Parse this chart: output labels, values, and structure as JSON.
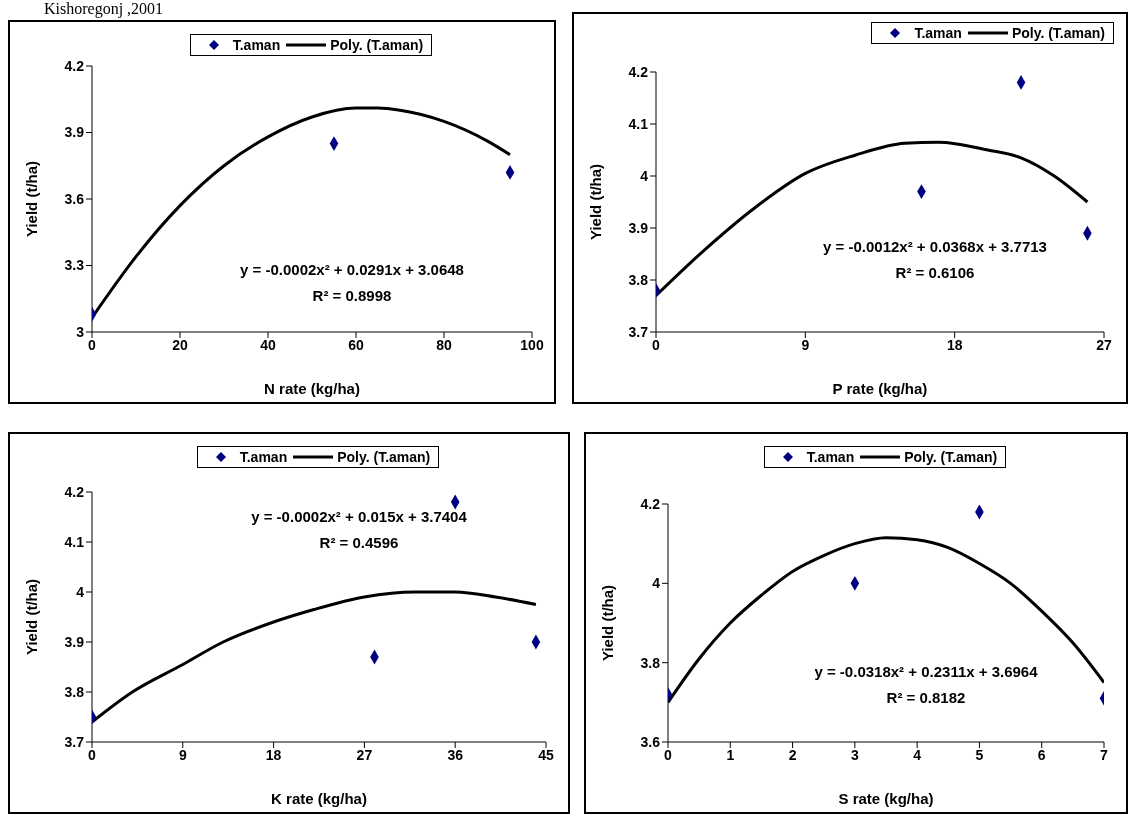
{
  "chart_data": [
    {
      "type": "scatter",
      "title": "Kishoregonj ,2001",
      "xlabel": "N rate (kg/ha)",
      "ylabel": "Yield (t/ha)",
      "xlim": [
        0,
        100
      ],
      "xticks": [
        0,
        20,
        40,
        60,
        80,
        100
      ],
      "ylim": [
        3,
        4.2
      ],
      "yticks": [
        3,
        3.3,
        3.6,
        3.9,
        4.2
      ],
      "legend": "top",
      "annotations": [
        "y = -0.0002x² + 0.0291x + 3.0648",
        "R² = 0.8998"
      ],
      "series": [
        {
          "name": "T.aman",
          "marker": "diamond",
          "color": "#000080",
          "x": [
            0,
            55,
            95
          ],
          "values": [
            3.08,
            3.85,
            3.72
          ]
        },
        {
          "name": "Poly. (T.aman)",
          "type": "line",
          "marker": "none",
          "line_style": "solid",
          "color": "#000000",
          "x": [
            0,
            10,
            20,
            30,
            40,
            50,
            60,
            65,
            70,
            80,
            90,
            95
          ],
          "values": [
            3.065,
            3.34,
            3.57,
            3.75,
            3.88,
            3.97,
            4.01,
            4.01,
            4.0,
            3.95,
            3.86,
            3.8
          ]
        }
      ]
    },
    {
      "type": "scatter",
      "xlabel": "P rate (kg/ha)",
      "ylabel": "Yield (t/ha)",
      "xlim": [
        0,
        27
      ],
      "xticks": [
        0,
        9,
        18,
        27
      ],
      "ylim": [
        3.7,
        4.2
      ],
      "yticks": [
        3.7,
        3.8,
        3.9,
        4,
        4.1,
        4.2
      ],
      "legend": "top right",
      "annotations": [
        "y = -0.0012x² + 0.0368x + 3.7713",
        "R² = 0.6106"
      ],
      "series": [
        {
          "name": "T.aman",
          "marker": "diamond",
          "color": "#000080",
          "x": [
            0,
            16,
            22,
            26
          ],
          "values": [
            3.78,
            3.97,
            4.18,
            3.89
          ]
        },
        {
          "name": "Poly. (T.aman)",
          "type": "line",
          "marker": "none",
          "line_style": "solid",
          "color": "#000000",
          "x": [
            0,
            3,
            6,
            9,
            12,
            15,
            17,
            20,
            22,
            24,
            26
          ],
          "values": [
            3.77,
            3.86,
            3.94,
            4.005,
            4.04,
            4.063,
            4.065,
            4.05,
            4.035,
            4.0,
            3.95
          ]
        }
      ]
    },
    {
      "type": "scatter",
      "xlabel": "K rate (kg/ha)",
      "ylabel": "Yield (t/ha)",
      "xlim": [
        0,
        45
      ],
      "xticks": [
        0,
        9,
        18,
        27,
        36,
        45
      ],
      "ylim": [
        3.7,
        4.2
      ],
      "yticks": [
        3.7,
        3.8,
        3.9,
        4,
        4.1,
        4.2
      ],
      "legend": "top",
      "annotations": [
        "y = -0.0002x² + 0.015x + 3.7404",
        "R² = 0.4596"
      ],
      "series": [
        {
          "name": "T.aman",
          "marker": "diamond",
          "color": "#000080",
          "x": [
            0,
            28,
            36,
            44
          ],
          "values": [
            3.75,
            3.87,
            4.18,
            3.9
          ]
        },
        {
          "name": "Poly. (T.aman)",
          "type": "line",
          "marker": "none",
          "line_style": "solid",
          "color": "#000000",
          "x": [
            0,
            4,
            9,
            13,
            18,
            22,
            27,
            32,
            36,
            40,
            44
          ],
          "values": [
            3.74,
            3.8,
            3.855,
            3.9,
            3.94,
            3.965,
            3.99,
            4.0,
            4.0,
            3.99,
            3.975
          ]
        }
      ]
    },
    {
      "type": "scatter",
      "xlabel": "S rate (kg/ha)",
      "ylabel": "Yield (t/ha)",
      "xlim": [
        0,
        7
      ],
      "xticks": [
        0,
        1,
        2,
        3,
        4,
        5,
        6,
        7
      ],
      "ylim": [
        3.6,
        4.2
      ],
      "yticks": [
        3.6,
        3.8,
        4,
        4.2
      ],
      "legend": "top",
      "annotations": [
        "y = -0.0318x² + 0.2311x + 3.6964",
        "R² = 0.8182"
      ],
      "series": [
        {
          "name": "T.aman",
          "marker": "diamond",
          "color": "#000080",
          "x": [
            0,
            3,
            5,
            7
          ],
          "values": [
            3.72,
            4.0,
            4.18,
            3.71
          ]
        },
        {
          "name": "Poly. (T.aman)",
          "type": "line",
          "marker": "none",
          "line_style": "solid",
          "color": "#000000",
          "x": [
            0,
            0.5,
            1,
            1.5,
            2,
            2.5,
            3,
            3.5,
            4,
            4.5,
            5,
            5.5,
            6,
            6.5,
            7
          ],
          "values": [
            3.7,
            3.81,
            3.9,
            3.97,
            4.03,
            4.07,
            4.1,
            4.115,
            4.11,
            4.09,
            4.05,
            4.0,
            3.93,
            3.85,
            3.75
          ]
        }
      ]
    }
  ]
}
